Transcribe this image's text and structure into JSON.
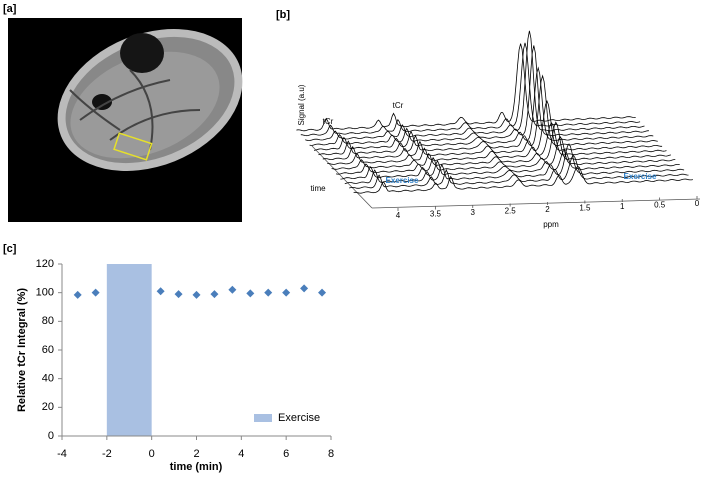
{
  "panels": {
    "a": {
      "label": "[a]"
    },
    "b": {
      "label": "[b]"
    },
    "c": {
      "label": "[c]"
    }
  },
  "chart_data": [
    {
      "type": "waterfall",
      "y_label": "Signal (a.u)",
      "x_label": "ppm",
      "z_label": "time",
      "xlim": [
        4,
        0
      ],
      "xticks": [
        4,
        3.5,
        3,
        2.5,
        2,
        1.5,
        1,
        0.5,
        0
      ],
      "annotations": [
        "tCr",
        "tCr",
        "Exercise",
        "Exercise"
      ]
    },
    {
      "type": "scatter",
      "y_label": "Relative tCr Integral (%)",
      "x_label": "time (min)",
      "xlim": [
        -4,
        8
      ],
      "xticks": [
        -4,
        -2,
        0,
        2,
        4,
        6,
        8
      ],
      "ylim": [
        0,
        120
      ],
      "yticks": [
        0,
        20,
        40,
        60,
        80,
        100,
        120
      ],
      "series": [
        {
          "color": "#4a7ebb",
          "x": [
            -3.3,
            -2.5,
            0.4,
            1.2,
            2,
            2.8,
            3.6,
            4.4,
            5.2,
            6,
            6.8,
            7.6
          ],
          "values": [
            98.5,
            100,
            101,
            99,
            98.5,
            99,
            102,
            99.5,
            100,
            100,
            103,
            100
          ]
        }
      ],
      "shaded_region": {
        "name": "Exercise",
        "x": [
          -2,
          0
        ],
        "color": "#a9c0e2"
      },
      "legend": "lower right"
    }
  ]
}
